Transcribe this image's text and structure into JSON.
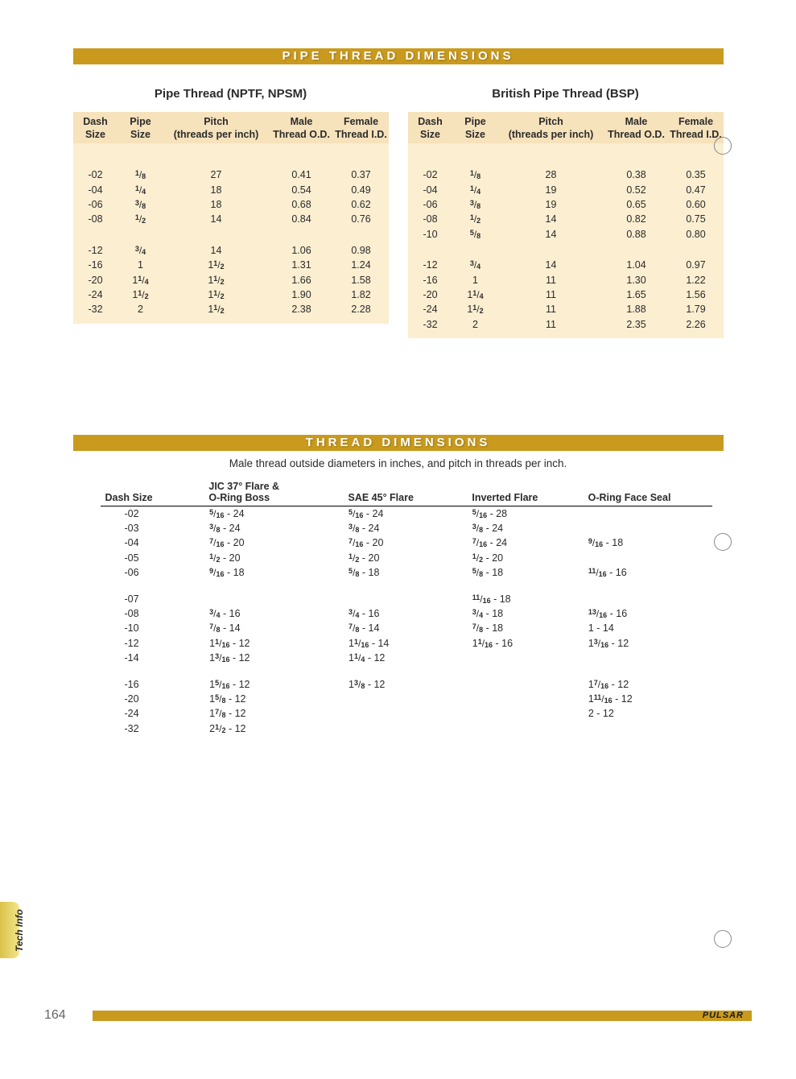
{
  "banner1": "PIPE THREAD DIMENSIONS",
  "banner2": "THREAD DIMENSIONS",
  "subtitle": "Male thread outside diameters in inches, and pitch in threads per inch.",
  "tab_label": "Tech Info",
  "page_number": "164",
  "brand": "PULSAR",
  "pipe_tables": {
    "headers": {
      "h1a": "Dash",
      "h1b": "Size",
      "h2a": "Pipe",
      "h2b": "Size",
      "h3a": "Pitch",
      "h3b": "(threads per inch)",
      "h4a": "Male",
      "h4b": "Thread O.D.",
      "h5a": "Female",
      "h5b": "Thread I.D."
    },
    "left": {
      "title": "Pipe Thread (NPTF, NPSM)",
      "g1": [
        {
          "dash": "-02",
          "size": {
            "n": "1",
            "d": "8"
          },
          "pitch": "27",
          "mod": "0.41",
          "fid": "0.37"
        },
        {
          "dash": "-04",
          "size": {
            "n": "1",
            "d": "4"
          },
          "pitch": "18",
          "mod": "0.54",
          "fid": "0.49"
        },
        {
          "dash": "-06",
          "size": {
            "n": "3",
            "d": "8"
          },
          "pitch": "18",
          "mod": "0.68",
          "fid": "0.62"
        },
        {
          "dash": "-08",
          "size": {
            "n": "1",
            "d": "2"
          },
          "pitch": "14",
          "mod": "0.84",
          "fid": "0.76"
        }
      ],
      "g2": [
        {
          "dash": "-12",
          "size": {
            "n": "3",
            "d": "4"
          },
          "pitch": "14",
          "mod": "1.06",
          "fid": "0.98"
        },
        {
          "dash": "-16",
          "size": {
            "w": "1"
          },
          "pitch": {
            "w": "1",
            "n": "1",
            "d": "2"
          },
          "mod": "1.31",
          "fid": "1.24"
        },
        {
          "dash": "-20",
          "size": {
            "w": "1",
            "n": "1",
            "d": "4"
          },
          "pitch": {
            "w": "1",
            "n": "1",
            "d": "2"
          },
          "mod": "1.66",
          "fid": "1.58"
        },
        {
          "dash": "-24",
          "size": {
            "w": "1",
            "n": "1",
            "d": "2"
          },
          "pitch": {
            "w": "1",
            "n": "1",
            "d": "2"
          },
          "mod": "1.90",
          "fid": "1.82"
        },
        {
          "dash": "-32",
          "size": {
            "w": "2"
          },
          "pitch": {
            "w": "1",
            "n": "1",
            "d": "2"
          },
          "mod": "2.38",
          "fid": "2.28"
        }
      ]
    },
    "right": {
      "title": "British Pipe Thread (BSP)",
      "g1": [
        {
          "dash": "-02",
          "size": {
            "n": "1",
            "d": "8"
          },
          "pitch": "28",
          "mod": "0.38",
          "fid": "0.35"
        },
        {
          "dash": "-04",
          "size": {
            "n": "1",
            "d": "4"
          },
          "pitch": "19",
          "mod": "0.52",
          "fid": "0.47"
        },
        {
          "dash": "-06",
          "size": {
            "n": "3",
            "d": "8"
          },
          "pitch": "19",
          "mod": "0.65",
          "fid": "0.60"
        },
        {
          "dash": "-08",
          "size": {
            "n": "1",
            "d": "2"
          },
          "pitch": "14",
          "mod": "0.82",
          "fid": "0.75"
        },
        {
          "dash": "-10",
          "size": {
            "n": "5",
            "d": "8"
          },
          "pitch": "14",
          "mod": "0.88",
          "fid": "0.80"
        }
      ],
      "g2": [
        {
          "dash": "-12",
          "size": {
            "n": "3",
            "d": "4"
          },
          "pitch": "14",
          "mod": "1.04",
          "fid": "0.97"
        },
        {
          "dash": "-16",
          "size": {
            "w": "1"
          },
          "pitch": "11",
          "mod": "1.30",
          "fid": "1.22"
        },
        {
          "dash": "-20",
          "size": {
            "w": "1",
            "n": "1",
            "d": "4"
          },
          "pitch": "11",
          "mod": "1.65",
          "fid": "1.56"
        },
        {
          "dash": "-24",
          "size": {
            "w": "1",
            "n": "1",
            "d": "2"
          },
          "pitch": "11",
          "mod": "1.88",
          "fid": "1.79"
        },
        {
          "dash": "-32",
          "size": {
            "w": "2"
          },
          "pitch": "11",
          "mod": "2.35",
          "fid": "2.26"
        }
      ]
    }
  },
  "thread_table": {
    "headers": {
      "h1": "Dash Size",
      "h2a": "JIC 37° Flare &",
      "h2b": "O-Ring Boss",
      "h3": "SAE 45° Flare",
      "h4": "Inverted Flare",
      "h5": "O-Ring Face Seal"
    },
    "groups": [
      [
        {
          "dash": "-02",
          "jic": {
            "n": "5",
            "d": "16",
            "p": "24"
          },
          "sae": {
            "n": "5",
            "d": "16",
            "p": "24"
          },
          "inv": {
            "n": "5",
            "d": "16",
            "p": "28"
          },
          "ofs": null
        },
        {
          "dash": "-03",
          "jic": {
            "n": "3",
            "d": "8",
            "p": "24"
          },
          "sae": {
            "n": "3",
            "d": "8",
            "p": "24"
          },
          "inv": {
            "n": "3",
            "d": "8",
            "p": "24"
          },
          "ofs": null
        },
        {
          "dash": "-04",
          "jic": {
            "n": "7",
            "d": "16",
            "p": "20"
          },
          "sae": {
            "n": "7",
            "d": "16",
            "p": "20"
          },
          "inv": {
            "n": "7",
            "d": "16",
            "p": "24"
          },
          "ofs": {
            "n": "9",
            "d": "16",
            "p": "18"
          }
        },
        {
          "dash": "-05",
          "jic": {
            "n": "1",
            "d": "2",
            "p": "20"
          },
          "sae": {
            "n": "1",
            "d": "2",
            "p": "20"
          },
          "inv": {
            "n": "1",
            "d": "2",
            "p": "20"
          },
          "ofs": null
        },
        {
          "dash": "-06",
          "jic": {
            "n": "9",
            "d": "16",
            "p": "18"
          },
          "sae": {
            "n": "5",
            "d": "8",
            "p": "18"
          },
          "inv": {
            "n": "5",
            "d": "8",
            "p": "18"
          },
          "ofs": {
            "n": "11",
            "d": "16",
            "p": "16"
          }
        }
      ],
      [
        {
          "dash": "-07",
          "jic": null,
          "sae": null,
          "inv": {
            "n": "11",
            "d": "16",
            "p": "18"
          },
          "ofs": null
        },
        {
          "dash": "-08",
          "jic": {
            "n": "3",
            "d": "4",
            "p": "16"
          },
          "sae": {
            "n": "3",
            "d": "4",
            "p": "16"
          },
          "inv": {
            "n": "3",
            "d": "4",
            "p": "18"
          },
          "ofs": {
            "n": "13",
            "d": "16",
            "p": "16"
          }
        },
        {
          "dash": "-10",
          "jic": {
            "n": "7",
            "d": "8",
            "p": "14"
          },
          "sae": {
            "n": "7",
            "d": "8",
            "p": "14"
          },
          "inv": {
            "n": "7",
            "d": "8",
            "p": "18"
          },
          "ofs": {
            "w": "1",
            "p": "14"
          }
        },
        {
          "dash": "-12",
          "jic": {
            "w": "1",
            "n": "1",
            "d": "16",
            "p": "12"
          },
          "sae": {
            "w": "1",
            "n": "1",
            "d": "16",
            "p": "14"
          },
          "inv": {
            "w": "1",
            "n": "1",
            "d": "16",
            "p": "16"
          },
          "ofs": {
            "w": "1",
            "n": "3",
            "d": "16",
            "p": "12"
          }
        },
        {
          "dash": "-14",
          "jic": {
            "w": "1",
            "n": "3",
            "d": "16",
            "p": "12"
          },
          "sae": {
            "w": "1",
            "n": "1",
            "d": "4",
            "p": "12"
          },
          "inv": null,
          "ofs": null
        }
      ],
      [
        {
          "dash": "-16",
          "jic": {
            "w": "1",
            "n": "5",
            "d": "16",
            "p": "12"
          },
          "sae": {
            "w": "1",
            "n": "3",
            "d": "8",
            "p": "12"
          },
          "inv": null,
          "ofs": {
            "w": "1",
            "n": "7",
            "d": "16",
            "p": "12"
          }
        },
        {
          "dash": "-20",
          "jic": {
            "w": "1",
            "n": "5",
            "d": "8",
            "p": "12"
          },
          "sae": null,
          "inv": null,
          "ofs": {
            "w": "1",
            "n": "11",
            "d": "16",
            "p": "12"
          }
        },
        {
          "dash": "-24",
          "jic": {
            "w": "1",
            "n": "7",
            "d": "8",
            "p": "12"
          },
          "sae": null,
          "inv": null,
          "ofs": {
            "w": "2",
            "p": "12"
          }
        },
        {
          "dash": "-32",
          "jic": {
            "w": "2",
            "n": "1",
            "d": "2",
            "p": "12"
          },
          "sae": null,
          "inv": null,
          "ofs": null
        }
      ]
    ]
  }
}
